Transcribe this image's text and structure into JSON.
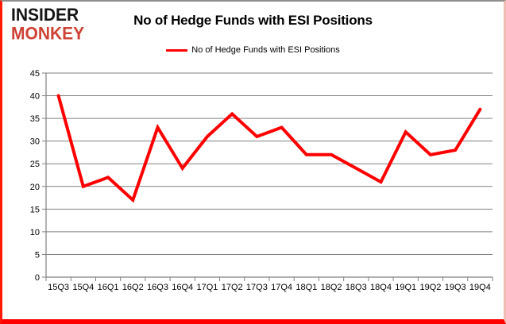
{
  "logo": {
    "line1": "INSIDER",
    "line2": "MONKEY",
    "line2_color": "#cd4335"
  },
  "header": {
    "title": "No of Hedge Funds with ESI Positions"
  },
  "legend": {
    "label": "No of Hedge Funds with ESI Positions",
    "line_color": "#ff0000"
  },
  "chart_data": {
    "type": "line",
    "title": "No of Hedge Funds with ESI Positions",
    "categories": [
      "15Q3",
      "15Q4",
      "16Q1",
      "16Q2",
      "16Q3",
      "16Q4",
      "17Q1",
      "17Q2",
      "17Q3",
      "17Q4",
      "18Q1",
      "18Q2",
      "18Q3",
      "18Q4",
      "19Q1",
      "19Q2",
      "19Q3",
      "19Q4"
    ],
    "series": [
      {
        "name": "No of Hedge Funds with ESI Positions",
        "color": "#ff0000",
        "values": [
          40,
          20,
          22,
          17,
          33,
          24,
          31,
          36,
          31,
          33,
          27,
          27,
          24,
          21,
          32,
          27,
          28,
          37
        ]
      }
    ],
    "xlabel": "",
    "ylabel": "",
    "ylim": [
      0,
      45
    ],
    "yticks": [
      0,
      5,
      10,
      15,
      20,
      25,
      30,
      35,
      40,
      45
    ],
    "grid": "horizontal",
    "gridline_color": "#808080",
    "axis_color": "#808080",
    "tick_label_color": "#000000",
    "legend_position": "top",
    "line_width": 4
  }
}
